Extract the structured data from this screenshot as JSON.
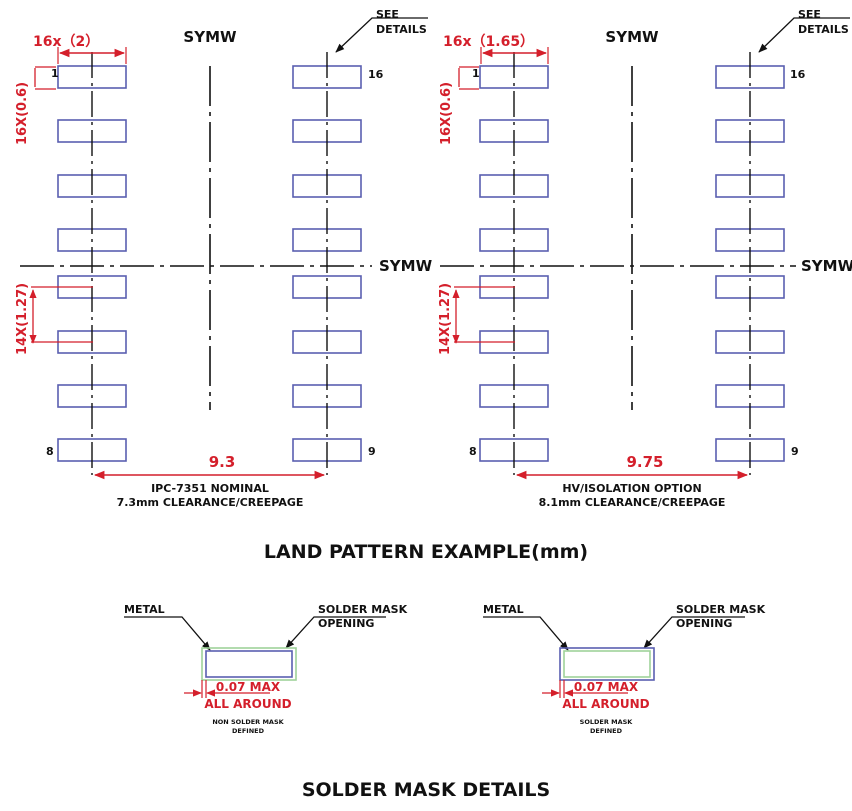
{
  "colors": {
    "pad_outline": "#5a5fb0",
    "dimension": "#d41f2b",
    "line": "#111111",
    "mask_outline": "#9fd29a"
  },
  "left": {
    "width_dim": "16x（2）",
    "pad_height_dim": "16X(0.6)",
    "pitch_dim": "14X(1.27)",
    "span_dim": "9.3",
    "note_line1": "IPC-7351 NOMINAL",
    "note_line2": "7.3mm CLEARANCE/CREEPAGE"
  },
  "right": {
    "width_dim": "16x（1.65）",
    "pad_height_dim": "16X(0.6)",
    "pitch_dim": "14X(1.27)",
    "span_dim": "9.75",
    "note_line1": "HV/ISOLATION OPTION",
    "note_line2": "8.1mm CLEARANCE/CREEPAGE"
  },
  "common": {
    "symw_top": "SYMW",
    "symw_side": "SYMW",
    "see_details_1": "SEE",
    "see_details_2": "DETAILS",
    "pin_1": "1",
    "pin_8": "8",
    "pin_9": "9",
    "pin_16": "16"
  },
  "land_pattern_title": "LAND PATTERN EXAMPLE(mm)",
  "mask_left": {
    "metal": "METAL",
    "opening_1": "SOLDER MASK",
    "opening_2": "OPENING",
    "max": "0.07 MAX",
    "around": "ALL AROUND",
    "type_1": "NON SOLDER MASK",
    "type_2": "DEFINED"
  },
  "mask_right": {
    "metal": "METAL",
    "opening_1": "SOLDER MASK",
    "opening_2": "OPENING",
    "max": "0.07 MAX",
    "around": "ALL AROUND",
    "type_1": "SOLDER MASK",
    "type_2": "DEFINED"
  },
  "solder_mask_title": "SOLDER MASK DETAILS"
}
